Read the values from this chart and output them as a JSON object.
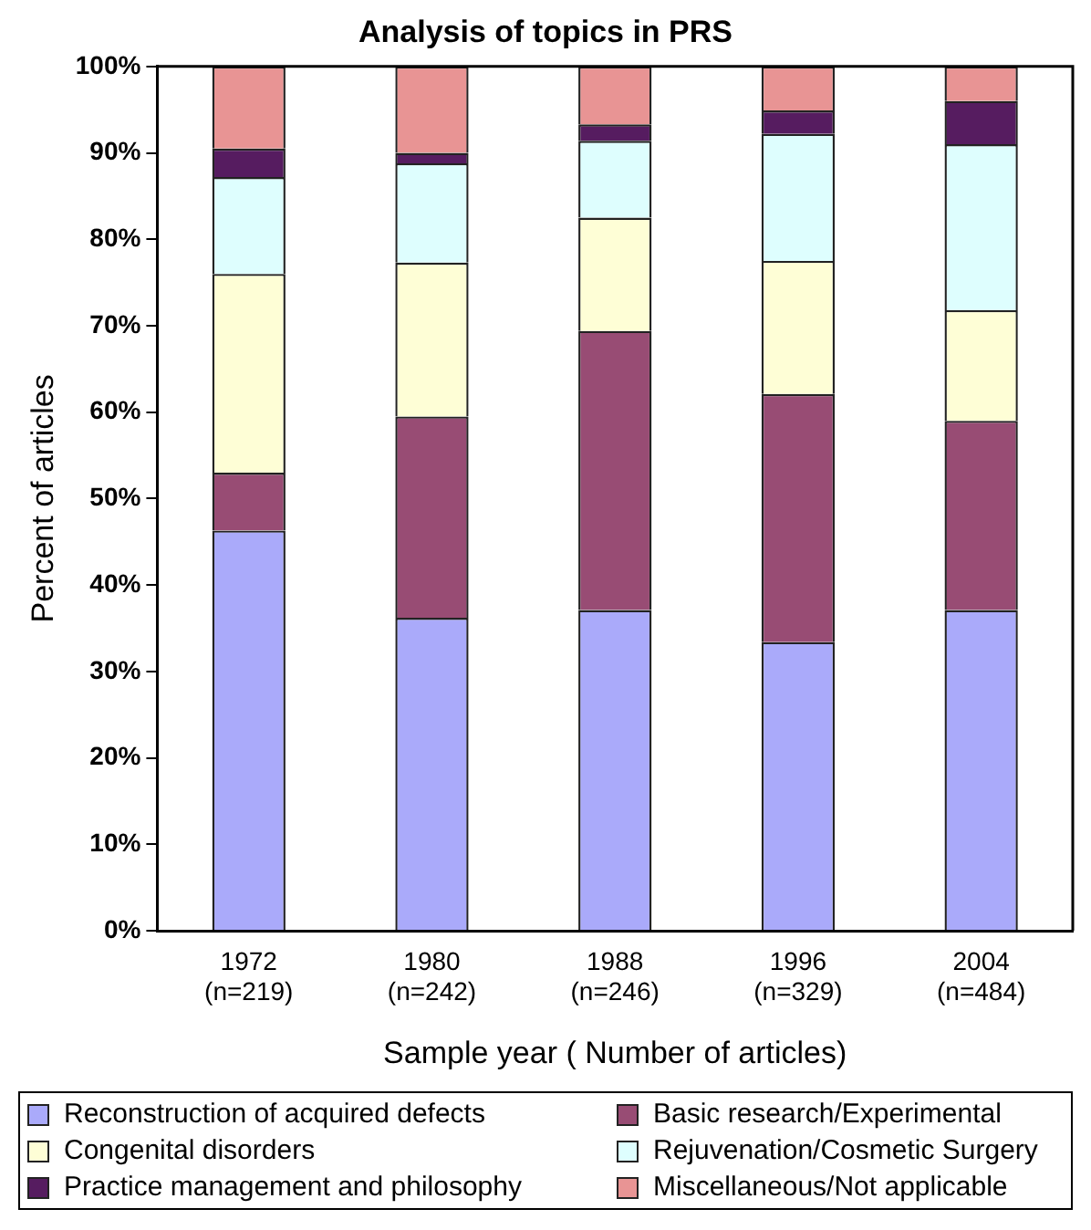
{
  "chart_data": {
    "type": "bar",
    "title": "Analysis of topics in PRS",
    "xlabel": "Sample year ( Number of articles)",
    "ylabel": "Percent of articles",
    "categories": [
      "1972\n(n=219)",
      "1980\n(n=242)",
      "1988\n(n=246)",
      "1996\n(n=329)",
      "2004\n(n=484)"
    ],
    "stacked": true,
    "grid": false,
    "legend": "bottom",
    "ylim": [
      0,
      100
    ],
    "yticks": [
      {
        "value": 0,
        "label": "0%"
      },
      {
        "value": 10,
        "label": "10%"
      },
      {
        "value": 20,
        "label": "20%"
      },
      {
        "value": 30,
        "label": "30%"
      },
      {
        "value": 40,
        "label": "40%"
      },
      {
        "value": 50,
        "label": "50%"
      },
      {
        "value": 60,
        "label": "60%"
      },
      {
        "value": 70,
        "label": "70%"
      },
      {
        "value": 80,
        "label": "80%"
      },
      {
        "value": 90,
        "label": "90%"
      },
      {
        "value": 100,
        "label": "100%"
      }
    ],
    "series": [
      {
        "name": "Reconstruction of acquired defects",
        "color": "#aaaafa",
        "values": [
          46.3,
          36.2,
          37.1,
          33.4,
          37.1
        ]
      },
      {
        "name": "Basic research/Experimental",
        "color": "#984c74",
        "values": [
          6.7,
          23.3,
          32.3,
          28.7,
          21.9
        ]
      },
      {
        "name": "Congenital disorders",
        "color": "#fefed6",
        "values": [
          23.0,
          17.8,
          13.1,
          15.4,
          12.8
        ]
      },
      {
        "name": "Rejuvenation/Cosmetic Surgery",
        "color": "#defefe",
        "values": [
          11.2,
          11.5,
          8.9,
          14.7,
          19.2
        ]
      },
      {
        "name": "Practice management and philosophy",
        "color": "#561c60",
        "values": [
          3.3,
          1.2,
          1.9,
          2.7,
          5.0
        ]
      },
      {
        "name": "Miscellaneous/Not applicable",
        "color": "#e89494",
        "values": [
          9.5,
          10.0,
          6.7,
          5.1,
          4.0
        ]
      }
    ]
  }
}
